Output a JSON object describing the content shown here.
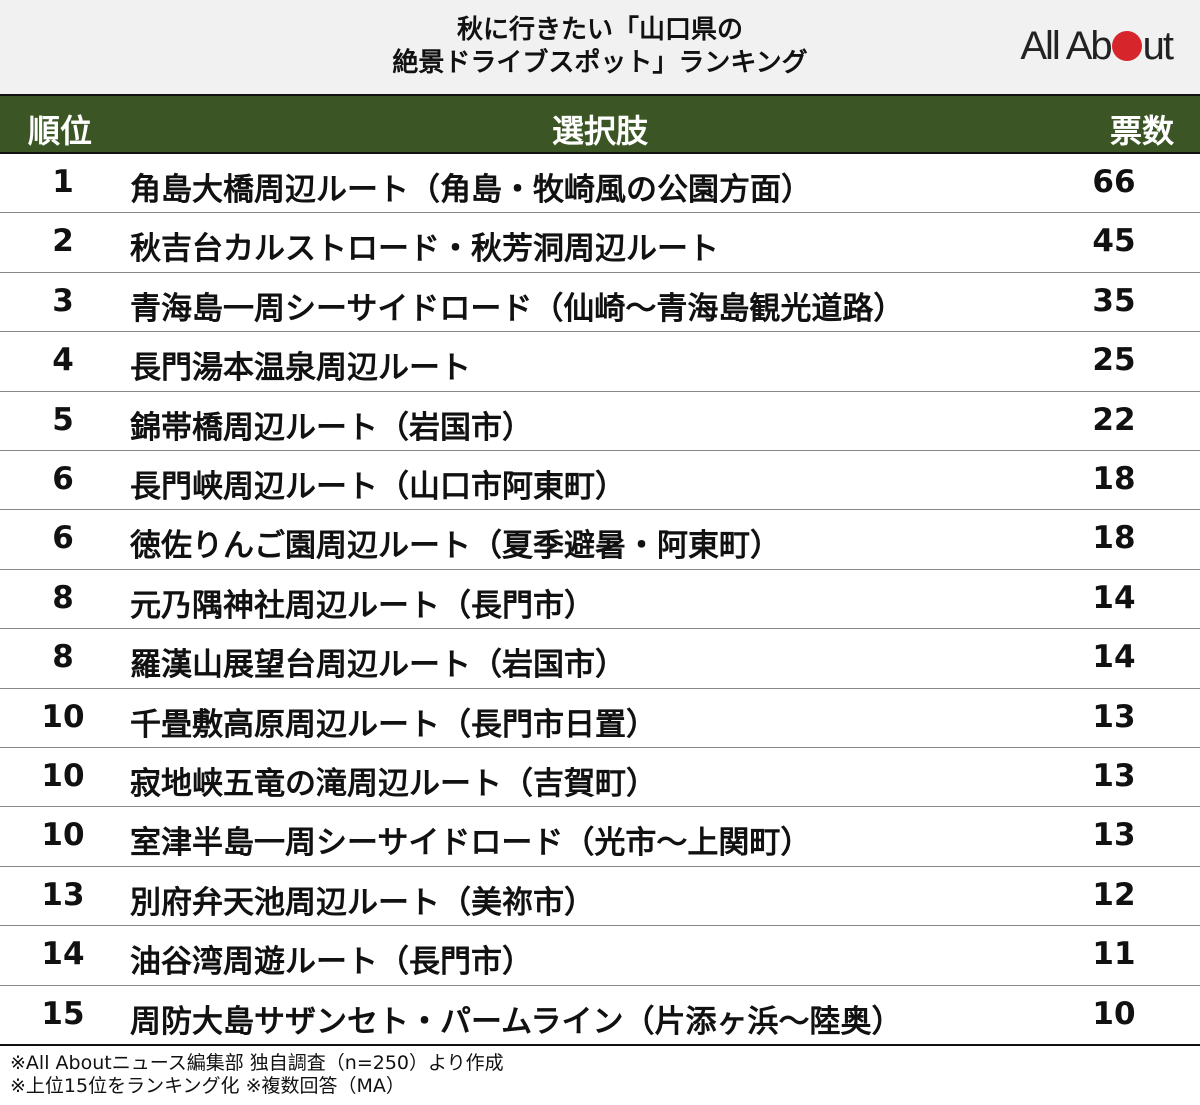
{
  "title_line1": "秋に行きたい「山口県の",
  "title_line2": "絶景ドライブスポット」ランキング",
  "logo": "All About",
  "brand_colors": {
    "header": "#3b5524",
    "logo_dot": "#d6262b"
  },
  "chart_data": {
    "type": "table",
    "columns": [
      "順位",
      "選択肢",
      "票数"
    ],
    "rows": [
      {
        "rank": "1",
        "name": "角島大橋周辺ルート（角島・牧崎風の公園方面）",
        "votes": "66"
      },
      {
        "rank": "2",
        "name": "秋吉台カルストロード・秋芳洞周辺ルート",
        "votes": "45"
      },
      {
        "rank": "3",
        "name": "青海島一周シーサイドロード（仙崎～青海島観光道路）",
        "votes": "35"
      },
      {
        "rank": "4",
        "name": "長門湯本温泉周辺ルート",
        "votes": "25"
      },
      {
        "rank": "5",
        "name": "錦帯橋周辺ルート（岩国市）",
        "votes": "22"
      },
      {
        "rank": "6",
        "name": "長門峡周辺ルート（山口市阿東町）",
        "votes": "18"
      },
      {
        "rank": "6",
        "name": "徳佐りんご園周辺ルート（夏季避暑・阿東町）",
        "votes": "18"
      },
      {
        "rank": "8",
        "name": "元乃隅神社周辺ルート（長門市）",
        "votes": "14"
      },
      {
        "rank": "8",
        "name": "羅漢山展望台周辺ルート（岩国市）",
        "votes": "14"
      },
      {
        "rank": "10",
        "name": "千畳敷高原周辺ルート（長門市日置）",
        "votes": "13"
      },
      {
        "rank": "10",
        "name": "寂地峡五竜の滝周辺ルート（吉賀町）",
        "votes": "13"
      },
      {
        "rank": "10",
        "name": "室津半島一周シーサイドロード（光市～上関町）",
        "votes": "13"
      },
      {
        "rank": "13",
        "name": "別府弁天池周辺ルート（美祢市）",
        "votes": "12"
      },
      {
        "rank": "14",
        "name": "油谷湾周遊ルート（長門市）",
        "votes": "11"
      },
      {
        "rank": "15",
        "name": "周防大島サザンセト・パームライン（片添ヶ浜～陸奥）",
        "votes": "10"
      }
    ]
  },
  "notes": [
    "※All Aboutニュース編集部 独自調査（n=250）より作成",
    "※上位15位をランキング化 ※複数回答（MA）"
  ]
}
